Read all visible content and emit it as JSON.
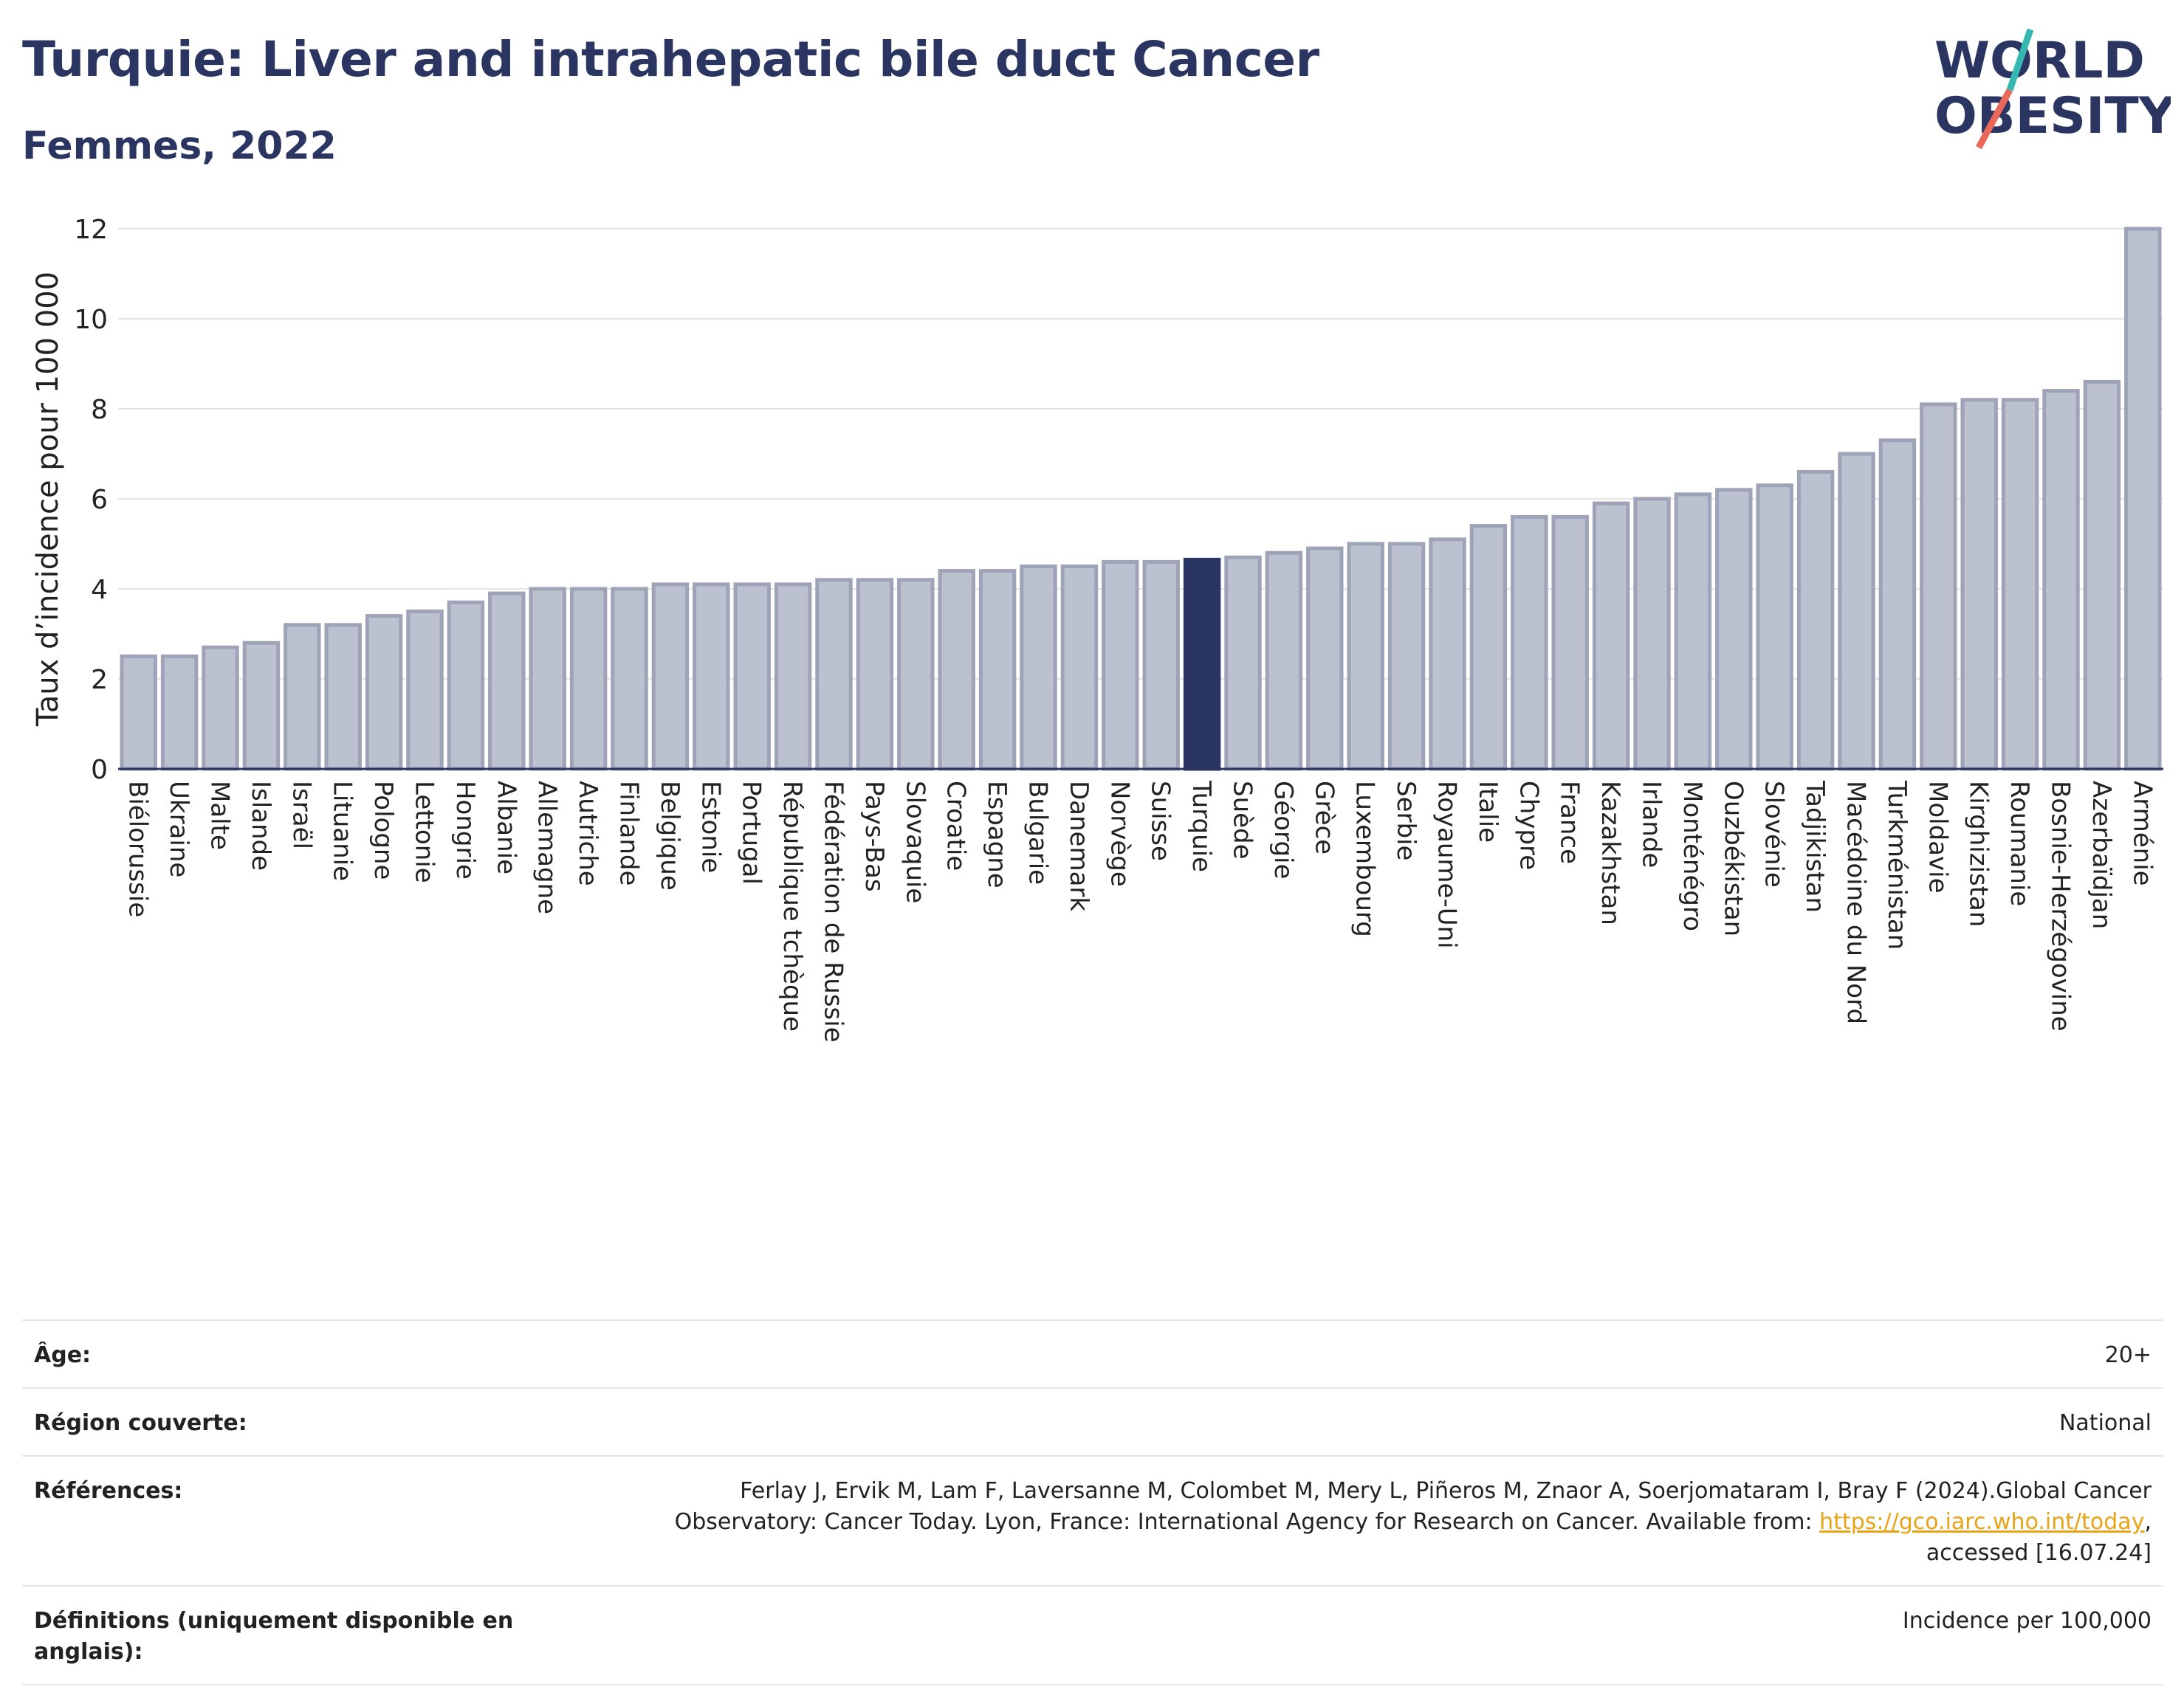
{
  "header": {
    "title": "Turquie: Liver and intrahepatic bile duct Cancer",
    "subtitle": "Femmes, 2022"
  },
  "logo": {
    "line1": "WORLD",
    "line2": "OBESITY"
  },
  "chart_data": {
    "type": "bar",
    "ylabel": "Taux d’incidence pour 100 000",
    "xlabel": "",
    "ylim": [
      0,
      12
    ],
    "yticks": [
      0,
      2,
      4,
      6,
      8,
      10,
      12
    ],
    "grid": true,
    "highlight": "Turquie",
    "colors": {
      "bar": "#bcc1cf",
      "bar_edge": "#9ea3b7",
      "highlight": "#2b3562"
    },
    "categories": [
      "Biélorussie",
      "Ukraine",
      "Malte",
      "Islande",
      "Israël",
      "Lituanie",
      "Pologne",
      "Lettonie",
      "Hongrie",
      "Albanie",
      "Allemagne",
      "Autriche",
      "Finlande",
      "Belgique",
      "Estonie",
      "Portugal",
      "République tchèque",
      "Fédération de Russie",
      "Pays-Bas",
      "Slovaquie",
      "Croatie",
      "Espagne",
      "Bulgarie",
      "Danemark",
      "Norvège",
      "Suisse",
      "Turquie",
      "Suède",
      "Géorgie",
      "Grèce",
      "Luxembourg",
      "Serbie",
      "Royaume-Uni",
      "Italie",
      "Chypre",
      "France",
      "Kazakhstan",
      "Irlande",
      "Monténégro",
      "Ouzbékistan",
      "Slovénie",
      "Tadjikistan",
      "Macédoine du Nord",
      "Turkménistan",
      "Moldavie",
      "Kirghizistan",
      "Roumanie",
      "Bosnie-Herzégovine",
      "Azerbaïdjan",
      "Arménie"
    ],
    "values": [
      2.5,
      2.5,
      2.7,
      2.8,
      3.2,
      3.2,
      3.4,
      3.5,
      3.7,
      3.9,
      4.0,
      4.0,
      4.0,
      4.1,
      4.1,
      4.1,
      4.1,
      4.2,
      4.2,
      4.2,
      4.4,
      4.4,
      4.5,
      4.5,
      4.6,
      4.6,
      4.65,
      4.7,
      4.8,
      4.9,
      5.0,
      5.0,
      5.1,
      5.4,
      5.6,
      5.6,
      5.9,
      6.0,
      6.1,
      6.2,
      6.3,
      6.6,
      7.0,
      7.3,
      8.1,
      8.2,
      8.2,
      8.4,
      8.6,
      12.0
    ]
  },
  "meta": {
    "age_label": "Âge:",
    "age_value": "20+",
    "region_label": "Région couverte:",
    "region_value": "National",
    "ref_label": "Références:",
    "ref_text1": "Ferlay J, Ervik M, Lam F, Laversanne M, Colombet M, Mery L, Piñeros M, Znaor A, Soerjomataram I, Bray F (2024).Global Cancer",
    "ref_text2": "Observatory: Cancer Today. Lyon, France: International Agency for Research on Cancer. Available from: ",
    "ref_link": "https://gco.iarc.who.int/today",
    "ref_text3": ",",
    "ref_text4": "accessed [16.07.24]",
    "def_label": "Définitions (uniquement disponible en anglais):",
    "def_value": "Incidence per 100,000"
  }
}
